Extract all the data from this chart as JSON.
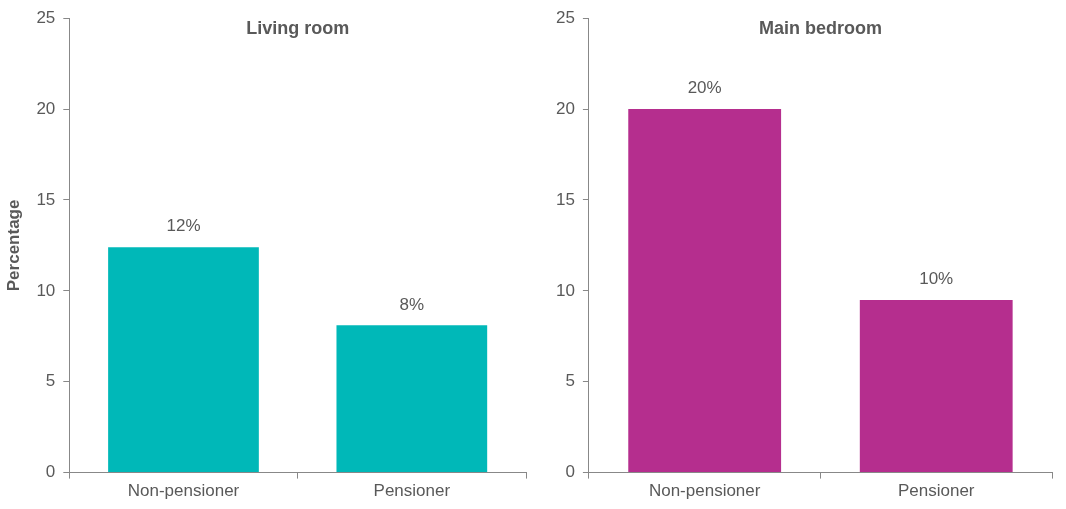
{
  "chart_data": [
    {
      "type": "bar",
      "title": "Living room",
      "ylabel": "Percentage",
      "categories": [
        "Non-pensioner",
        "Pensioner"
      ],
      "values": [
        12.4,
        8.1
      ],
      "value_labels": [
        "12%",
        "8%"
      ],
      "color": "#00b8b8",
      "ylim": [
        0,
        25
      ],
      "yticks": [
        0,
        5,
        10,
        15,
        20,
        25
      ]
    },
    {
      "type": "bar",
      "title": "Main bedroom",
      "categories": [
        "Non-pensioner",
        "Pensioner"
      ],
      "values": [
        20.0,
        9.5
      ],
      "value_labels": [
        "20%",
        "10%"
      ],
      "color": "#b52e8e",
      "ylim": [
        0,
        25
      ],
      "yticks": [
        0,
        5,
        10,
        15,
        20,
        25
      ]
    }
  ]
}
